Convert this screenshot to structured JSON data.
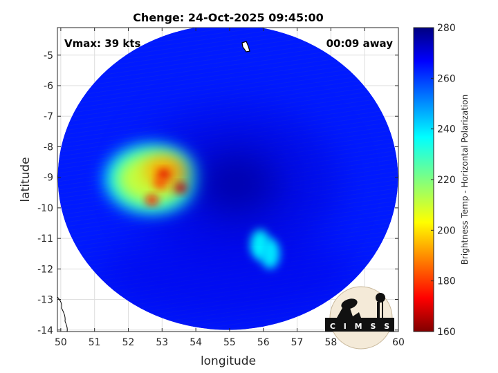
{
  "chart_data": {
    "type": "heatmap",
    "title": "Chenge: 24-Oct-2025 09:45:00",
    "xlabel": "longitude",
    "ylabel": "latitude",
    "xlim": [
      49.9,
      60.0
    ],
    "ylim": [
      -14.05,
      -4.1
    ],
    "x_ticks": [
      50,
      51,
      52,
      53,
      54,
      55,
      56,
      57,
      58,
      59,
      60
    ],
    "y_ticks": [
      -5,
      -6,
      -7,
      -8,
      -9,
      -10,
      -11,
      -12,
      -13,
      -14
    ],
    "grid": true,
    "colormap": "jet",
    "colorbar": {
      "label": "Brightness Temp - Horizontal Polarization",
      "range": [
        160,
        280
      ],
      "ticks": [
        280,
        260,
        240,
        220,
        200,
        180,
        160
      ]
    },
    "annotations": {
      "left": "Vmax: 39 kts",
      "right": "00:09 away"
    },
    "swath": {
      "center_lon": 54.95,
      "center_lat": -9.0,
      "background_temp": 262
    },
    "features": [
      {
        "name": "convection",
        "lon": 52.7,
        "lat": -9.05,
        "temp": 212
      },
      {
        "name": "convection",
        "lon": 53.1,
        "lat": -8.8,
        "temp": 195
      },
      {
        "name": "core",
        "lon": 53.05,
        "lat": -8.9,
        "temp": 172
      },
      {
        "name": "core",
        "lon": 53.55,
        "lat": -9.35,
        "temp": 170
      },
      {
        "name": "core",
        "lon": 52.7,
        "lat": -9.75,
        "temp": 176
      },
      {
        "name": "core",
        "lon": 52.95,
        "lat": -9.2,
        "temp": 182
      },
      {
        "name": "rainband",
        "lon": 55.9,
        "lat": -11.2,
        "temp": 236
      },
      {
        "name": "rainband",
        "lon": 56.2,
        "lat": -11.5,
        "temp": 238
      },
      {
        "name": "eye-region",
        "lon": 55.2,
        "lat": -9.2,
        "temp": 275
      }
    ],
    "logo": "C I M S S"
  }
}
